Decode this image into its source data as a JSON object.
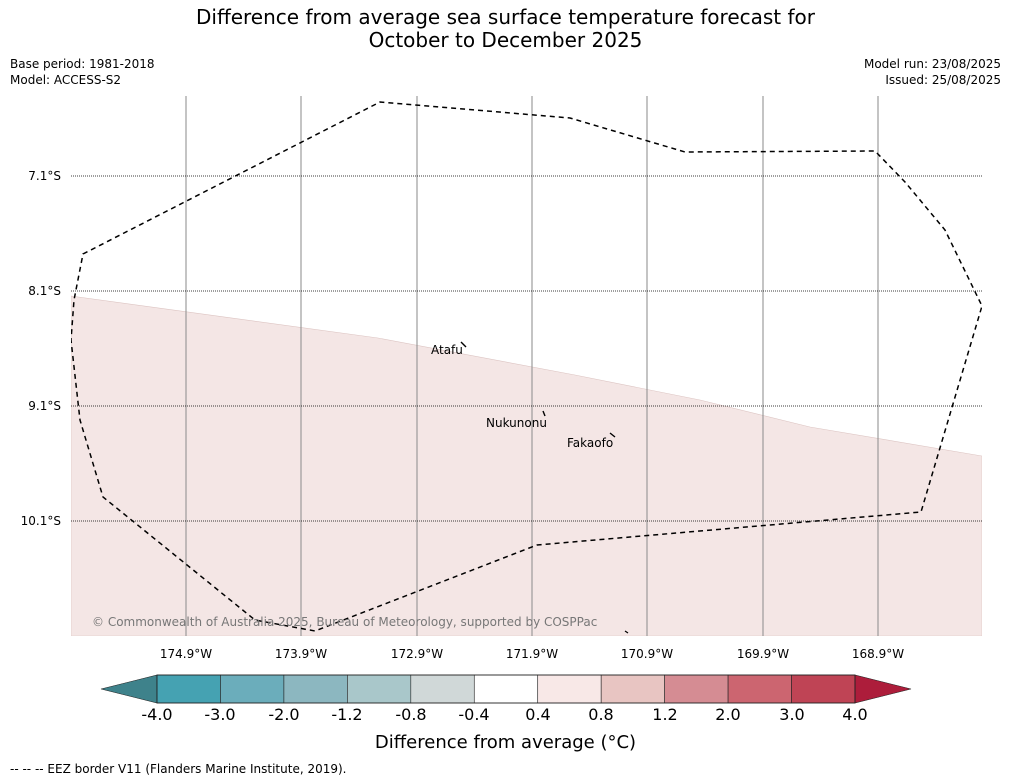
{
  "title_line1": "Difference from average sea surface temperature forecast for",
  "title_line2": "October to December 2025",
  "meta": {
    "base_period": "Base period: 1981-2018",
    "model": "Model: ACCESS-S2",
    "model_run": "Model run: 23/08/2025",
    "issued": "Issued: 25/08/2025"
  },
  "map": {
    "lat_labels": [
      "7.1°S",
      "8.1°S",
      "9.1°S",
      "10.1°S"
    ],
    "lon_labels": [
      "174.9°W",
      "173.9°W",
      "172.9°W",
      "171.9°W",
      "170.9°W",
      "169.9°W",
      "168.9°W"
    ],
    "places": [
      {
        "name": "Atafu"
      },
      {
        "name": "Nukunonu"
      },
      {
        "name": "Fakaofo"
      }
    ],
    "anomaly_fill_color": "#f4e6e5",
    "copyright": "© Commonwealth of Australia 2025, Bureau of Meteorology, supported by COSPPac"
  },
  "colorbar": {
    "ticks": [
      "-4.0",
      "-3.0",
      "-2.0",
      "-1.2",
      "-0.8",
      "-0.4",
      "0.4",
      "0.8",
      "1.2",
      "2.0",
      "3.0",
      "4.0"
    ],
    "colors": [
      "#3e828b",
      "#45a2b2",
      "#6badbb",
      "#8cb7c0",
      "#a9c7ca",
      "#d0d8d8",
      "#ffffff",
      "#f8e8e7",
      "#e8c5c2",
      "#d58c93",
      "#cc6570",
      "#bf4455",
      "#ad1d3b"
    ],
    "label": "Difference from average (°C)"
  },
  "footer_note": "--  --  -- EEZ border V11 (Flanders Marine Institute, 2019)."
}
